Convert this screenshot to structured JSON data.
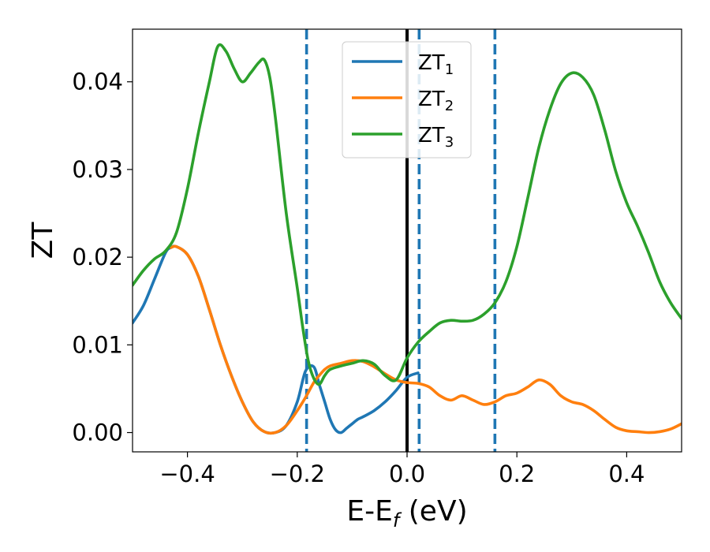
{
  "chart_data": {
    "type": "line",
    "title": "",
    "xlabel": "E-E",
    "xlabel_sub": "f",
    "xlabel_unit": " (eV)",
    "ylabel": "ZT",
    "xlim": [
      -0.5,
      0.5
    ],
    "ylim": [
      -0.0022,
      0.046
    ],
    "xticks": [
      -0.4,
      -0.2,
      0.0,
      0.2,
      0.4
    ],
    "xtick_labels": [
      "−0.4",
      "−0.2",
      "0.0",
      "0.2",
      "0.4"
    ],
    "yticks": [
      0.0,
      0.01,
      0.02,
      0.03,
      0.04
    ],
    "ytick_labels": [
      "0.00",
      "0.01",
      "0.02",
      "0.03",
      "0.04"
    ],
    "grid": false,
    "legend_position": "top-center",
    "vertical_lines": [
      {
        "x": 0.0,
        "style": "solid",
        "color": "#000000"
      },
      {
        "x": -0.183,
        "style": "dashed",
        "color": "#1f77b4"
      },
      {
        "x": 0.022,
        "style": "dashed",
        "color": "#1f77b4"
      },
      {
        "x": 0.16,
        "style": "dashed",
        "color": "#1f77b4"
      }
    ],
    "series": [
      {
        "name": "ZT",
        "name_sub": "1",
        "color": "#1f77b4",
        "x": [
          -0.5,
          -0.48,
          -0.46,
          -0.44,
          -0.43,
          -0.42,
          -0.4,
          -0.38,
          -0.36,
          -0.34,
          -0.32,
          -0.3,
          -0.28,
          -0.26,
          -0.24,
          -0.22,
          -0.2,
          -0.185,
          -0.17,
          -0.16,
          -0.15,
          -0.14,
          -0.13,
          -0.12,
          -0.11,
          -0.1,
          -0.09,
          -0.08,
          -0.06,
          -0.04,
          -0.02,
          0.0,
          0.02
        ],
        "y": [
          0.0125,
          0.0145,
          0.0175,
          0.0205,
          0.0211,
          0.0212,
          0.0203,
          0.0178,
          0.014,
          0.01,
          0.0065,
          0.0035,
          0.0012,
          0.0001,
          0.0,
          0.0008,
          0.0035,
          0.007,
          0.0075,
          0.0055,
          0.0035,
          0.0015,
          0.0003,
          0.0,
          0.0005,
          0.001,
          0.0015,
          0.0018,
          0.0025,
          0.0035,
          0.0048,
          0.0063,
          0.0068
        ]
      },
      {
        "name": "ZT",
        "name_sub": "2",
        "color": "#ff7f0e",
        "x": [
          -0.43,
          -0.42,
          -0.4,
          -0.38,
          -0.36,
          -0.34,
          -0.32,
          -0.3,
          -0.28,
          -0.26,
          -0.24,
          -0.22,
          -0.2,
          -0.185,
          -0.17,
          -0.16,
          -0.15,
          -0.14,
          -0.12,
          -0.1,
          -0.08,
          -0.06,
          -0.04,
          -0.02,
          0.0,
          0.02,
          0.04,
          0.06,
          0.08,
          0.1,
          0.12,
          0.14,
          0.16,
          0.18,
          0.2,
          0.22,
          0.24,
          0.26,
          0.28,
          0.3,
          0.32,
          0.34,
          0.36,
          0.38,
          0.4,
          0.42,
          0.44,
          0.46,
          0.48,
          0.5
        ],
        "y": [
          0.0211,
          0.0212,
          0.0203,
          0.0178,
          0.014,
          0.01,
          0.0065,
          0.0035,
          0.0012,
          0.0001,
          0.0,
          0.0008,
          0.0025,
          0.004,
          0.0057,
          0.0065,
          0.0072,
          0.0076,
          0.0079,
          0.0082,
          0.0081,
          0.0075,
          0.0067,
          0.006,
          0.0057,
          0.0056,
          0.0052,
          0.0042,
          0.0037,
          0.0042,
          0.0037,
          0.0032,
          0.0035,
          0.0042,
          0.0045,
          0.0052,
          0.006,
          0.0055,
          0.0042,
          0.0035,
          0.0032,
          0.0025,
          0.0015,
          0.0006,
          0.0002,
          0.0001,
          0.0,
          0.0001,
          0.0004,
          0.001
        ]
      },
      {
        "name": "ZT",
        "name_sub": "3",
        "color": "#2ca02c",
        "x": [
          -0.5,
          -0.48,
          -0.46,
          -0.44,
          -0.42,
          -0.4,
          -0.38,
          -0.36,
          -0.345,
          -0.33,
          -0.315,
          -0.3,
          -0.285,
          -0.27,
          -0.26,
          -0.25,
          -0.24,
          -0.22,
          -0.2,
          -0.19,
          -0.18,
          -0.17,
          -0.16,
          -0.15,
          -0.14,
          -0.12,
          -0.1,
          -0.08,
          -0.06,
          -0.04,
          -0.02,
          0.0,
          0.02,
          0.04,
          0.06,
          0.08,
          0.1,
          0.12,
          0.14,
          0.16,
          0.18,
          0.2,
          0.22,
          0.24,
          0.26,
          0.28,
          0.3,
          0.32,
          0.34,
          0.36,
          0.38,
          0.4,
          0.42,
          0.44,
          0.46,
          0.48,
          0.5
        ],
        "y": [
          0.0168,
          0.0185,
          0.0198,
          0.0207,
          0.0228,
          0.0278,
          0.0342,
          0.04,
          0.044,
          0.0435,
          0.0415,
          0.04,
          0.041,
          0.0422,
          0.0425,
          0.0405,
          0.036,
          0.025,
          0.0165,
          0.012,
          0.0082,
          0.0062,
          0.0055,
          0.0065,
          0.0072,
          0.0076,
          0.0079,
          0.0082,
          0.0078,
          0.0065,
          0.006,
          0.0085,
          0.0103,
          0.0115,
          0.0125,
          0.0128,
          0.0127,
          0.0128,
          0.0135,
          0.0148,
          0.0172,
          0.0212,
          0.0268,
          0.0325,
          0.0368,
          0.0398,
          0.041,
          0.0405,
          0.0385,
          0.0345,
          0.0298,
          0.0262,
          0.0235,
          0.0205,
          0.0172,
          0.0148,
          0.013
        ]
      }
    ]
  }
}
